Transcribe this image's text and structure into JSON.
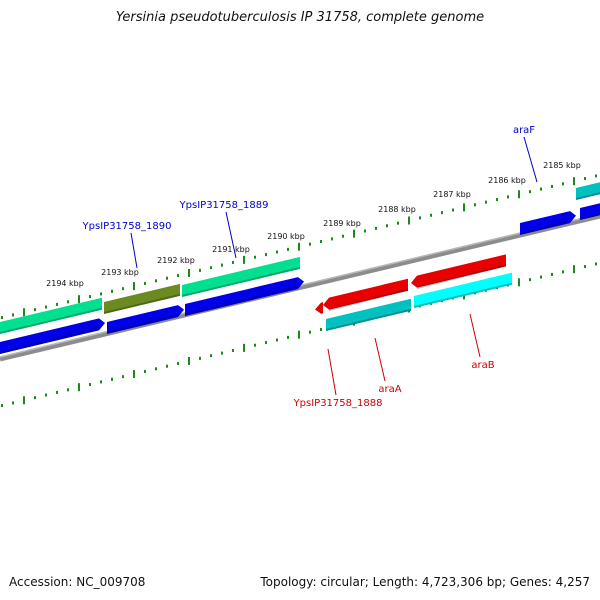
{
  "title": "Yersinia pseudotuberculosis IP 31758, complete genome",
  "footer": {
    "accession": "Accession: NC_009708",
    "summary": "Topology: circular; Length: 4,723,306 bp; Genes: 4,257"
  },
  "colors": {
    "backbone": "#8c8c8c",
    "tick": "#1a8a1a",
    "gene_forward": "#00e090",
    "gene_highlight": "#6b8b20",
    "cds_blue": "#0000e8",
    "gene_reverse": "#e80000",
    "gene_cyan": "#00ffff",
    "gene_teal": "#00c0c0",
    "label_forward": "#0000cc",
    "label_reverse": "#cc0000"
  },
  "kbp_ticks": [
    "2185 kbp",
    "2186 kbp",
    "2187 kbp",
    "2188 kbp",
    "2189 kbp",
    "2190 kbp",
    "2191 kbp",
    "2192 kbp",
    "2193 kbp",
    "2194 kbp"
  ],
  "gene_labels_forward": [
    "araF",
    "YpsIP31758_1889",
    "YpsIP31758_1890"
  ],
  "gene_labels_reverse": [
    "araB",
    "araA",
    "YpsIP31758_1888"
  ]
}
